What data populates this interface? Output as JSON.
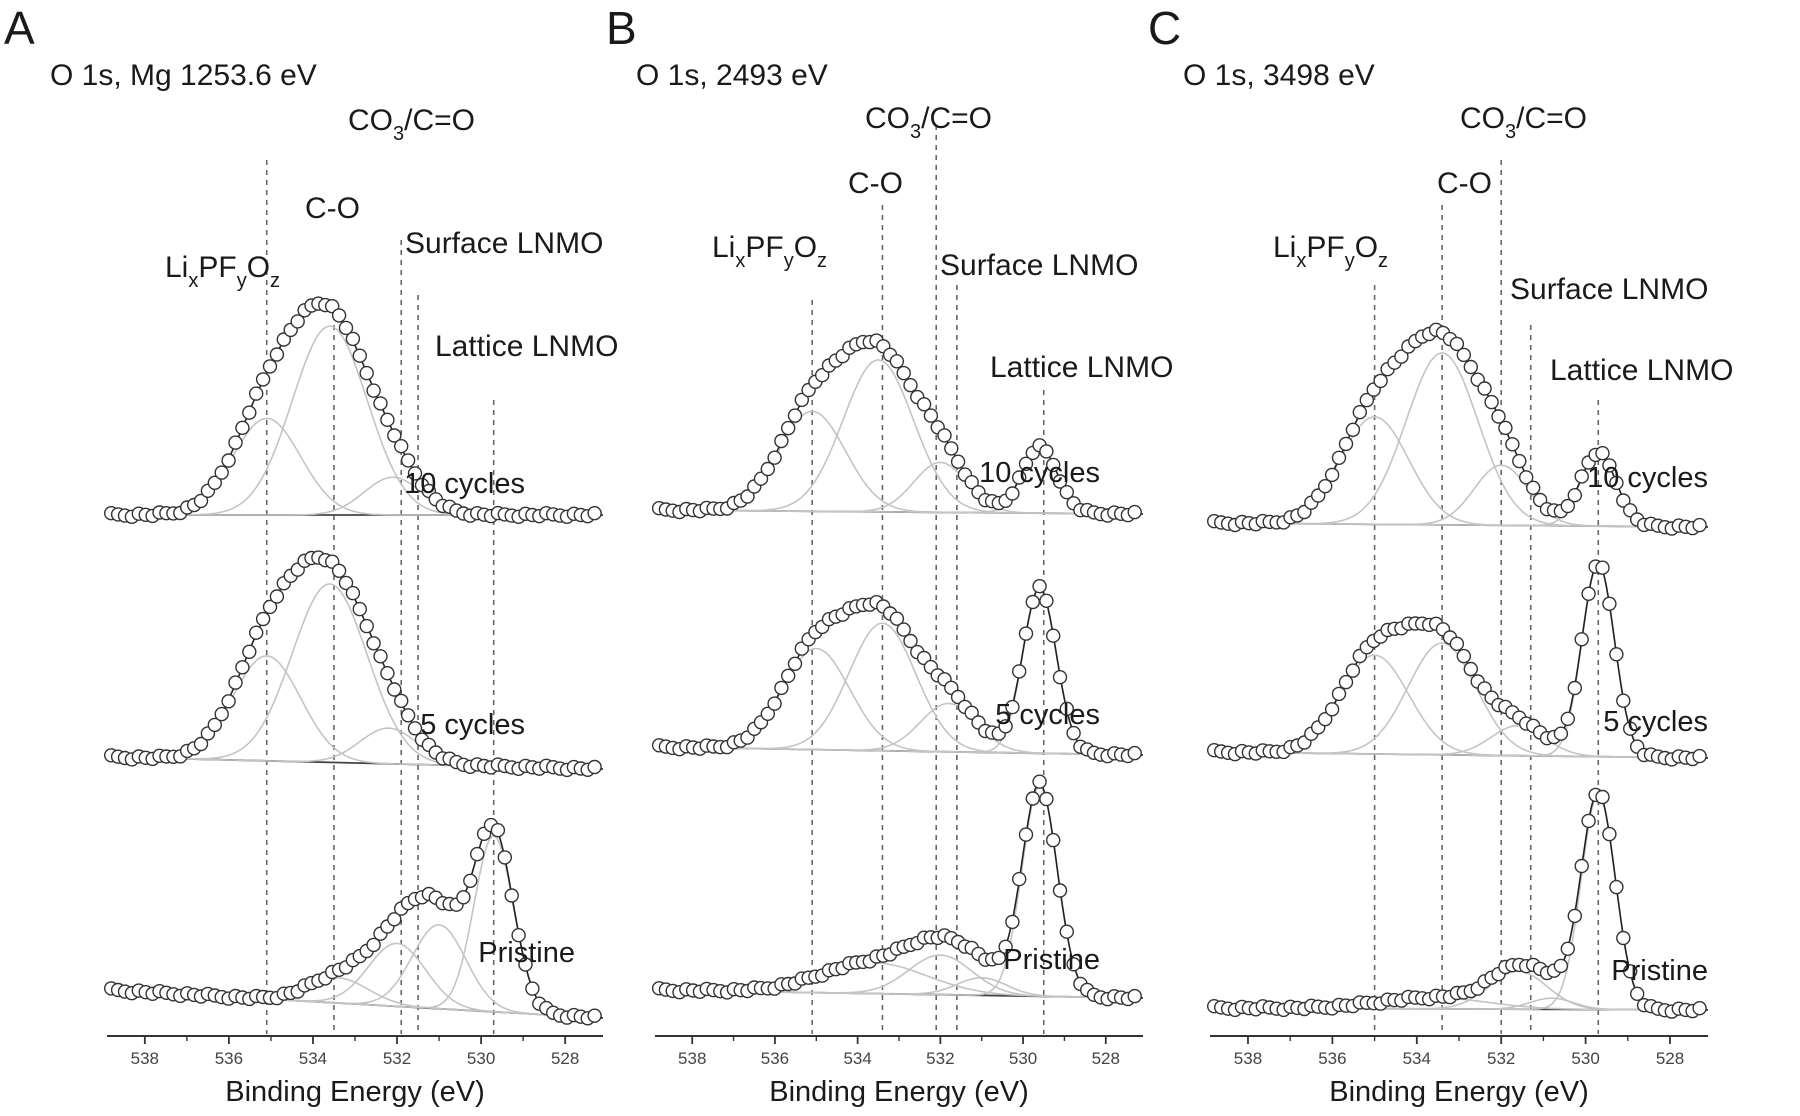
{
  "chart_data": [
    {
      "type": "line",
      "panel_label": "A",
      "title": "O 1s, Mg 1253.6 eV",
      "xlabel": "Binding Energy (eV)",
      "xlim": [
        538.9,
        527.1
      ],
      "xticks": [
        "538",
        "536",
        "534",
        "532",
        "530",
        "528"
      ],
      "reference_lines": [
        {
          "name": "LixPFyOz",
          "x": 535.1
        },
        {
          "name": "C-O",
          "x": 533.5
        },
        {
          "name": "CO3/C=O",
          "x": 531.9
        },
        {
          "name": "Surface LNMO",
          "x": 531.5
        },
        {
          "name": "Lattice LNMO",
          "x": 529.7
        }
      ],
      "peak_labels": {
        "co3_main": "CO",
        "co3_sub": "3",
        "co3_rest": "/C=O",
        "co": "C-O",
        "lix_li": "Li",
        "lix_x": "x",
        "lix_pf": "PF",
        "lix_y": "y",
        "lix_o": "O",
        "lix_z": "z",
        "surface": "Surface LNMO",
        "lattice": "Lattice LNMO"
      },
      "series": [
        {
          "name": "10 cycles",
          "components": [
            {
              "center": 535.1,
              "fwhm": 1.9,
              "height": 0.46
            },
            {
              "center": 533.6,
              "fwhm": 2.1,
              "height": 0.9
            },
            {
              "center": 532.1,
              "fwhm": 1.6,
              "height": 0.18
            },
            {
              "center": 529.7,
              "fwhm": 1.1,
              "height": 0.0
            }
          ]
        },
        {
          "name": "5 cycles",
          "components": [
            {
              "center": 535.1,
              "fwhm": 1.9,
              "height": 0.5
            },
            {
              "center": 533.6,
              "fwhm": 2.1,
              "height": 0.85
            },
            {
              "center": 532.2,
              "fwhm": 1.6,
              "height": 0.17
            },
            {
              "center": 529.7,
              "fwhm": 1.1,
              "height": 0.0
            }
          ]
        },
        {
          "name": "Pristine",
          "components": [
            {
              "center": 533.4,
              "fwhm": 1.7,
              "height": 0.12
            },
            {
              "center": 532.0,
              "fwhm": 1.6,
              "height": 0.3
            },
            {
              "center": 531.0,
              "fwhm": 1.5,
              "height": 0.4
            },
            {
              "center": 529.7,
              "fwhm": 1.1,
              "height": 0.84
            }
          ]
        }
      ]
    },
    {
      "type": "line",
      "panel_label": "B",
      "title": "O 1s, 2493 eV",
      "xlabel": "Binding Energy (eV)",
      "xlim": [
        538.9,
        527.1
      ],
      "xticks": [
        "538",
        "536",
        "534",
        "532",
        "530",
        "528"
      ],
      "reference_lines": [
        {
          "name": "LixPFyOz",
          "x": 535.1
        },
        {
          "name": "C-O",
          "x": 533.4
        },
        {
          "name": "CO3/C=O",
          "x": 532.1
        },
        {
          "name": "Surface LNMO",
          "x": 531.6
        },
        {
          "name": "Lattice LNMO",
          "x": 529.5
        }
      ],
      "peak_labels": {
        "co3_main": "CO",
        "co3_sub": "3",
        "co3_rest": "/C=O",
        "co": "C-O",
        "lix_li": "Li",
        "lix_x": "x",
        "lix_pf": "PF",
        "lix_y": "y",
        "lix_o": "O",
        "lix_z": "z",
        "surface": "Surface LNMO",
        "lattice": "Lattice LNMO"
      },
      "series": [
        {
          "name": "10 cycles",
          "components": [
            {
              "center": 535.1,
              "fwhm": 1.9,
              "height": 0.5
            },
            {
              "center": 533.5,
              "fwhm": 2.0,
              "height": 0.76
            },
            {
              "center": 532.0,
              "fwhm": 1.5,
              "height": 0.25
            },
            {
              "center": 529.6,
              "fwhm": 1.0,
              "height": 0.33
            }
          ]
        },
        {
          "name": "5 cycles",
          "components": [
            {
              "center": 535.0,
              "fwhm": 1.9,
              "height": 0.46
            },
            {
              "center": 533.4,
              "fwhm": 1.9,
              "height": 0.58
            },
            {
              "center": 531.8,
              "fwhm": 1.6,
              "height": 0.22
            },
            {
              "center": 529.6,
              "fwhm": 0.95,
              "height": 0.75
            }
          ]
        },
        {
          "name": "Pristine",
          "components": [
            {
              "center": 533.6,
              "fwhm": 3.0,
              "height": 0.14
            },
            {
              "center": 532.0,
              "fwhm": 1.8,
              "height": 0.18
            },
            {
              "center": 531.0,
              "fwhm": 1.4,
              "height": 0.08
            },
            {
              "center": 529.6,
              "fwhm": 1.0,
              "height": 0.96
            }
          ]
        }
      ]
    },
    {
      "type": "line",
      "panel_label": "C",
      "title": "O 1s, 3498 eV",
      "xlabel": "Binding Energy (eV)",
      "xlim": [
        538.9,
        527.1
      ],
      "xticks": [
        "538",
        "536",
        "534",
        "532",
        "530",
        "528"
      ],
      "reference_lines": [
        {
          "name": "LixPFyOz",
          "x": 535.0
        },
        {
          "name": "C-O",
          "x": 533.4
        },
        {
          "name": "CO3/C=O",
          "x": 532.0
        },
        {
          "name": "Surface LNMO",
          "x": 531.3
        },
        {
          "name": "Lattice LNMO",
          "x": 529.7
        }
      ],
      "peak_labels": {
        "co3_main": "CO",
        "co3_sub": "3",
        "co3_rest": "/C=O",
        "co": "C-O",
        "lix_li": "Li",
        "lix_x": "x",
        "lix_pf": "PF",
        "lix_y": "y",
        "lix_o": "O",
        "lix_z": "z",
        "surface": "Surface LNMO",
        "lattice": "Lattice LNMO"
      },
      "series": [
        {
          "name": "10 cycles",
          "components": [
            {
              "center": 535.0,
              "fwhm": 1.9,
              "height": 0.5
            },
            {
              "center": 533.4,
              "fwhm": 2.0,
              "height": 0.8
            },
            {
              "center": 532.0,
              "fwhm": 1.5,
              "height": 0.28
            },
            {
              "center": 529.7,
              "fwhm": 1.0,
              "height": 0.34
            }
          ]
        },
        {
          "name": "5 cycles",
          "components": [
            {
              "center": 535.0,
              "fwhm": 1.9,
              "height": 0.46
            },
            {
              "center": 533.4,
              "fwhm": 1.9,
              "height": 0.52
            },
            {
              "center": 531.6,
              "fwhm": 1.5,
              "height": 0.14
            },
            {
              "center": 529.7,
              "fwhm": 0.9,
              "height": 0.9
            }
          ]
        },
        {
          "name": "Pristine",
          "components": [
            {
              "center": 533.6,
              "fwhm": 3.0,
              "height": 0.05
            },
            {
              "center": 531.6,
              "fwhm": 1.6,
              "height": 0.17
            },
            {
              "center": 530.8,
              "fwhm": 1.2,
              "height": 0.05
            },
            {
              "center": 529.7,
              "fwhm": 0.95,
              "height": 0.96
            }
          ]
        }
      ]
    }
  ]
}
